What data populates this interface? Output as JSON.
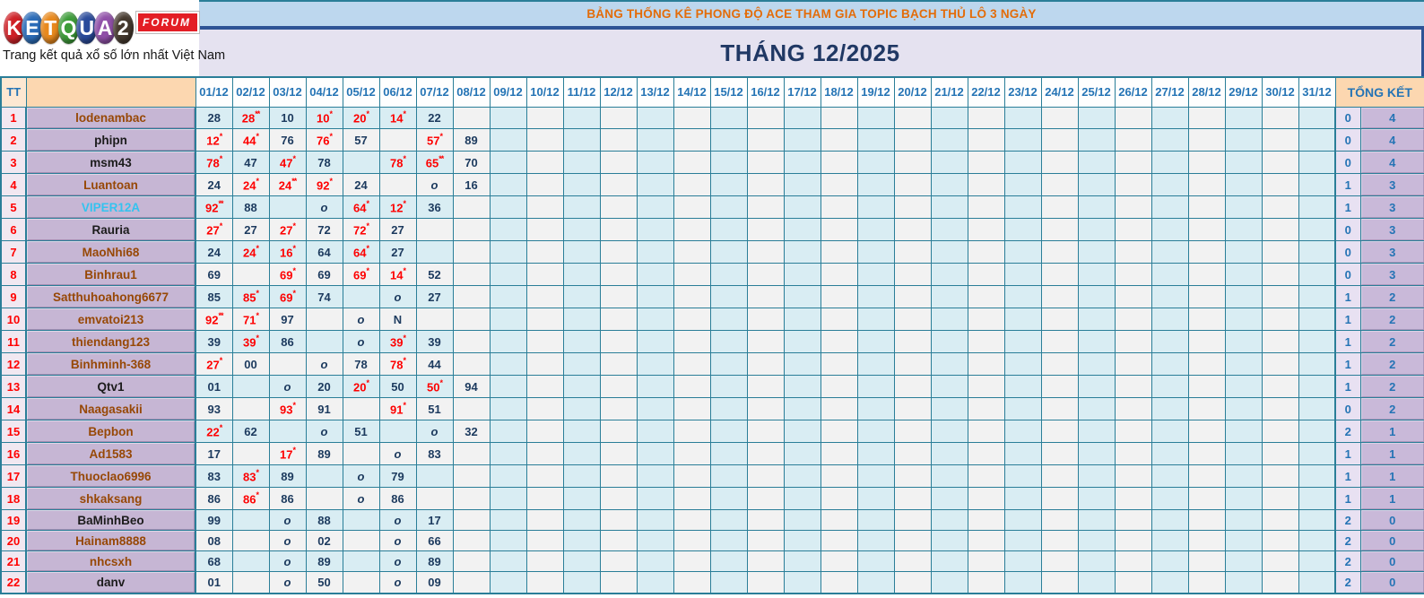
{
  "logo": {
    "letters": [
      {
        "ch": "K",
        "bg": "#cf2127"
      },
      {
        "ch": "E",
        "bg": "#2b6cb8"
      },
      {
        "ch": "T",
        "bg": "#e8891d"
      },
      {
        "ch": "Q",
        "bg": "#3d9c39"
      },
      {
        "ch": "U",
        "bg": "#2a4b9b"
      },
      {
        "ch": "A",
        "bg": "#9050a8"
      },
      {
        "ch": "2",
        "bg": "#45392e"
      }
    ],
    "forum_label": "FORUM",
    "tagline": "Trang kết quả xổ số lớn nhất Việt Nam"
  },
  "titles": {
    "main": "BẢNG THỐNG KÊ PHONG ĐỘ ACE THAM GIA TOPIC BẠCH THỦ LÔ 3 NGÀY",
    "month": "THÁNG 12/2025"
  },
  "colors": {
    "title_accent": "#e36c09",
    "month_navy": "#203864",
    "grid_teal": "#2a7e98",
    "score_navy": "#1c3a5e",
    "score_red": "#fe0000",
    "summary_blue": "#2574b5",
    "name_colors": {
      "brown": "#974806",
      "black": "#1b1b1b",
      "cyan": "#34c3ef"
    }
  },
  "table": {
    "tt_header": "TT",
    "summary_header": "TỔNG KẾT",
    "date_columns": [
      "01/12",
      "02/12",
      "03/12",
      "04/12",
      "05/12",
      "06/12",
      "07/12",
      "08/12",
      "09/12",
      "10/12",
      "11/12",
      "12/12",
      "13/12",
      "14/12",
      "15/12",
      "16/12",
      "17/12",
      "18/12",
      "19/12",
      "20/12",
      "21/12",
      "22/12",
      "23/12",
      "24/12",
      "25/12",
      "26/12",
      "27/12",
      "28/12",
      "29/12",
      "30/12",
      "31/12"
    ],
    "rows": [
      {
        "tt": "1",
        "name": "lodenambac",
        "name_color": "brown",
        "sum1": "0",
        "sum2": "4",
        "cells": {
          "1": {
            "v": "28",
            "t": "n"
          },
          "2": {
            "v": "28",
            "s": "**",
            "t": "r"
          },
          "3": {
            "v": "10",
            "t": "n"
          },
          "4": {
            "v": "10",
            "s": "*",
            "t": "r"
          },
          "5": {
            "v": "20",
            "s": "*",
            "t": "r"
          },
          "6": {
            "v": "14",
            "s": "*",
            "t": "r"
          },
          "7": {
            "v": "22",
            "t": "n"
          }
        }
      },
      {
        "tt": "2",
        "name": "phipn",
        "name_color": "black",
        "sum1": "0",
        "sum2": "4",
        "cells": {
          "1": {
            "v": "12",
            "s": "*",
            "t": "r"
          },
          "2": {
            "v": "44",
            "s": "*",
            "t": "r"
          },
          "3": {
            "v": "76",
            "t": "n"
          },
          "4": {
            "v": "76",
            "s": "*",
            "t": "r"
          },
          "5": {
            "v": "57",
            "t": "n"
          },
          "7": {
            "v": "57",
            "s": "*",
            "t": "r"
          },
          "8": {
            "v": "89",
            "t": "n"
          }
        }
      },
      {
        "tt": "3",
        "name": "msm43",
        "name_color": "black",
        "sum1": "0",
        "sum2": "4",
        "cells": {
          "1": {
            "v": "78",
            "s": "*",
            "t": "r"
          },
          "2": {
            "v": "47",
            "t": "n"
          },
          "3": {
            "v": "47",
            "s": "*",
            "t": "r"
          },
          "4": {
            "v": "78",
            "t": "n"
          },
          "6": {
            "v": "78",
            "s": "*",
            "t": "r"
          },
          "7": {
            "v": "65",
            "s": "**",
            "t": "r"
          },
          "8": {
            "v": "70",
            "t": "n"
          }
        }
      },
      {
        "tt": "4",
        "name": "Luantoan",
        "name_color": "brown",
        "sum1": "1",
        "sum2": "3",
        "cells": {
          "1": {
            "v": "24",
            "t": "n"
          },
          "2": {
            "v": "24",
            "s": "*",
            "t": "r"
          },
          "3": {
            "v": "24",
            "s": "**",
            "t": "r"
          },
          "4": {
            "v": "92",
            "s": "*",
            "t": "r"
          },
          "5": {
            "v": "24",
            "t": "n"
          },
          "7": {
            "v": "o",
            "t": "i"
          },
          "8": {
            "v": "16",
            "t": "n"
          }
        }
      },
      {
        "tt": "5",
        "name": "VIPER12A",
        "name_color": "cyan",
        "sum1": "1",
        "sum2": "3",
        "cells": {
          "1": {
            "v": "92",
            "s": "**",
            "t": "r"
          },
          "2": {
            "v": "88",
            "t": "n"
          },
          "4": {
            "v": "o",
            "t": "i"
          },
          "5": {
            "v": "64",
            "s": "*",
            "t": "r"
          },
          "6": {
            "v": "12",
            "s": "*",
            "t": "r"
          },
          "7": {
            "v": "36",
            "t": "n"
          }
        }
      },
      {
        "tt": "6",
        "name": "Rauria",
        "name_color": "black",
        "sum1": "0",
        "sum2": "3",
        "cells": {
          "1": {
            "v": "27",
            "s": "*",
            "t": "r"
          },
          "2": {
            "v": "27",
            "t": "n"
          },
          "3": {
            "v": "27",
            "s": "*",
            "t": "r"
          },
          "4": {
            "v": "72",
            "t": "n"
          },
          "5": {
            "v": "72",
            "s": "*",
            "t": "r"
          },
          "6": {
            "v": "27",
            "t": "n"
          }
        }
      },
      {
        "tt": "7",
        "name": "MaoNhi68",
        "name_color": "brown",
        "sum1": "0",
        "sum2": "3",
        "cells": {
          "1": {
            "v": "24",
            "t": "n"
          },
          "2": {
            "v": "24",
            "s": "*",
            "t": "r"
          },
          "3": {
            "v": "16",
            "s": "*",
            "t": "r"
          },
          "4": {
            "v": "64",
            "t": "n"
          },
          "5": {
            "v": "64",
            "s": "*",
            "t": "r"
          },
          "6": {
            "v": "27",
            "t": "n"
          }
        }
      },
      {
        "tt": "8",
        "name": "Binhrau1",
        "name_color": "brown",
        "sum1": "0",
        "sum2": "3",
        "cells": {
          "1": {
            "v": "69",
            "t": "n"
          },
          "3": {
            "v": "69",
            "s": "*",
            "t": "r"
          },
          "4": {
            "v": "69",
            "t": "n"
          },
          "5": {
            "v": "69",
            "s": "*",
            "t": "r"
          },
          "6": {
            "v": "14",
            "s": "*",
            "t": "r"
          },
          "7": {
            "v": "52",
            "t": "n"
          }
        }
      },
      {
        "tt": "9",
        "name": "Satthuhoahong6677",
        "name_color": "brown",
        "sum1": "1",
        "sum2": "2",
        "cells": {
          "1": {
            "v": "85",
            "t": "n"
          },
          "2": {
            "v": "85",
            "s": "*",
            "t": "r"
          },
          "3": {
            "v": "69",
            "s": "*",
            "t": "r"
          },
          "4": {
            "v": "74",
            "t": "n"
          },
          "6": {
            "v": "o",
            "t": "i"
          },
          "7": {
            "v": "27",
            "t": "n"
          }
        }
      },
      {
        "tt": "10",
        "name": "emvatoi213",
        "name_color": "brown",
        "sum1": "1",
        "sum2": "2",
        "cells": {
          "1": {
            "v": "92",
            "s": "**",
            "t": "r"
          },
          "2": {
            "v": "71",
            "s": "*",
            "t": "r"
          },
          "3": {
            "v": "97",
            "t": "n"
          },
          "5": {
            "v": "o",
            "t": "i"
          },
          "6": {
            "v": "N",
            "t": "n"
          }
        }
      },
      {
        "tt": "11",
        "name": "thiendang123",
        "name_color": "brown",
        "sum1": "1",
        "sum2": "2",
        "cells": {
          "1": {
            "v": "39",
            "t": "n"
          },
          "2": {
            "v": "39",
            "s": "*",
            "t": "r"
          },
          "3": {
            "v": "86",
            "t": "n"
          },
          "5": {
            "v": "o",
            "t": "i"
          },
          "6": {
            "v": "39",
            "s": "*",
            "t": "r"
          },
          "7": {
            "v": "39",
            "t": "n"
          }
        }
      },
      {
        "tt": "12",
        "name": "Binhminh-368",
        "name_color": "brown",
        "sum1": "1",
        "sum2": "2",
        "cells": {
          "1": {
            "v": "27",
            "s": "*",
            "t": "r"
          },
          "2": {
            "v": "00",
            "t": "n"
          },
          "4": {
            "v": "o",
            "t": "i"
          },
          "5": {
            "v": "78",
            "t": "n"
          },
          "6": {
            "v": "78",
            "s": "*",
            "t": "r"
          },
          "7": {
            "v": "44",
            "t": "n"
          }
        }
      },
      {
        "tt": "13",
        "name": "Qtv1",
        "name_color": "black",
        "sum1": "1",
        "sum2": "2",
        "cells": {
          "1": {
            "v": "01",
            "t": "n"
          },
          "3": {
            "v": "o",
            "t": "i"
          },
          "4": {
            "v": "20",
            "t": "n"
          },
          "5": {
            "v": "20",
            "s": "*",
            "t": "r"
          },
          "6": {
            "v": "50",
            "t": "n"
          },
          "7": {
            "v": "50",
            "s": "*",
            "t": "r"
          },
          "8": {
            "v": "94",
            "t": "n"
          }
        }
      },
      {
        "tt": "14",
        "name": "Naagasakii",
        "name_color": "brown",
        "sum1": "0",
        "sum2": "2",
        "cells": {
          "1": {
            "v": "93",
            "t": "n"
          },
          "3": {
            "v": "93",
            "s": "*",
            "t": "r"
          },
          "4": {
            "v": "91",
            "t": "n"
          },
          "6": {
            "v": "91",
            "s": "*",
            "t": "r"
          },
          "7": {
            "v": "51",
            "t": "n"
          }
        }
      },
      {
        "tt": "15",
        "name": "Bepbon",
        "name_color": "brown",
        "sum1": "2",
        "sum2": "1",
        "cells": {
          "1": {
            "v": "22",
            "s": "*",
            "t": "r"
          },
          "2": {
            "v": "62",
            "t": "n"
          },
          "4": {
            "v": "o",
            "t": "i"
          },
          "5": {
            "v": "51",
            "t": "n"
          },
          "7": {
            "v": "o",
            "t": "i"
          },
          "8": {
            "v": "32",
            "t": "n"
          }
        }
      },
      {
        "tt": "16",
        "name": "Ad1583",
        "name_color": "brown",
        "sum1": "1",
        "sum2": "1",
        "cells": {
          "1": {
            "v": "17",
            "t": "n"
          },
          "3": {
            "v": "17",
            "s": "*",
            "t": "r"
          },
          "4": {
            "v": "89",
            "t": "n"
          },
          "6": {
            "v": "o",
            "t": "i"
          },
          "7": {
            "v": "83",
            "t": "n"
          }
        }
      },
      {
        "tt": "17",
        "name": "Thuoclao6996",
        "name_color": "brown",
        "sum1": "1",
        "sum2": "1",
        "cells": {
          "1": {
            "v": "83",
            "t": "n"
          },
          "2": {
            "v": "83",
            "s": "*",
            "t": "r"
          },
          "3": {
            "v": "89",
            "t": "n"
          },
          "5": {
            "v": "o",
            "t": "i"
          },
          "6": {
            "v": "79",
            "t": "n"
          }
        }
      },
      {
        "tt": "18",
        "name": "shkaksang",
        "name_color": "brown",
        "sum1": "1",
        "sum2": "1",
        "cells": {
          "1": {
            "v": "86",
            "t": "n"
          },
          "2": {
            "v": "86",
            "s": "*",
            "t": "r"
          },
          "3": {
            "v": "86",
            "t": "n"
          },
          "5": {
            "v": "o",
            "t": "i"
          },
          "6": {
            "v": "86",
            "t": "n"
          }
        }
      },
      {
        "tt": "19",
        "name": "BaMinhBeo",
        "name_color": "black",
        "sum1": "2",
        "sum2": "0",
        "cells": {
          "1": {
            "v": "99",
            "t": "n"
          },
          "3": {
            "v": "o",
            "t": "i"
          },
          "4": {
            "v": "88",
            "t": "n"
          },
          "6": {
            "v": "o",
            "t": "i"
          },
          "7": {
            "v": "17",
            "t": "n"
          }
        }
      },
      {
        "tt": "20",
        "name": "Hainam8888",
        "name_color": "brown",
        "sum1": "2",
        "sum2": "0",
        "cells": {
          "1": {
            "v": "08",
            "t": "n"
          },
          "3": {
            "v": "o",
            "t": "i"
          },
          "4": {
            "v": "02",
            "t": "n"
          },
          "6": {
            "v": "o",
            "t": "i"
          },
          "7": {
            "v": "66",
            "t": "n"
          }
        }
      },
      {
        "tt": "21",
        "name": "nhcsxh",
        "name_color": "brown",
        "sum1": "2",
        "sum2": "0",
        "cells": {
          "1": {
            "v": "68",
            "t": "n"
          },
          "3": {
            "v": "o",
            "t": "i"
          },
          "4": {
            "v": "89",
            "t": "n"
          },
          "6": {
            "v": "o",
            "t": "i"
          },
          "7": {
            "v": "89",
            "t": "n"
          }
        }
      },
      {
        "tt": "22",
        "name": "danv",
        "name_color": "black",
        "sum1": "2",
        "sum2": "0",
        "cells": {
          "1": {
            "v": "01",
            "t": "n"
          },
          "3": {
            "v": "o",
            "t": "i"
          },
          "4": {
            "v": "50",
            "t": "n"
          },
          "6": {
            "v": "o",
            "t": "i"
          },
          "7": {
            "v": "09",
            "t": "n"
          }
        }
      }
    ]
  }
}
